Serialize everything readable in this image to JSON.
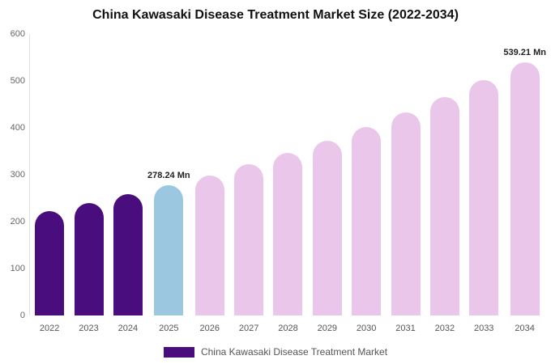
{
  "chart_data": {
    "type": "bar",
    "title": "China Kawasaki Disease Treatment Market Size (2022-2034)",
    "categories": [
      "2022",
      "2023",
      "2024",
      "2025",
      "2026",
      "2027",
      "2028",
      "2029",
      "2030",
      "2031",
      "2032",
      "2033",
      "2034"
    ],
    "values": [
      223,
      240,
      258,
      278.24,
      299,
      322,
      347,
      373,
      402,
      432,
      465,
      501,
      539.21
    ],
    "bar_roles": [
      "past",
      "past",
      "past",
      "current",
      "forecast",
      "forecast",
      "forecast",
      "forecast",
      "forecast",
      "forecast",
      "forecast",
      "forecast",
      "forecast"
    ],
    "colors": {
      "past": "#4a0d7e",
      "current": "#9cc7e0",
      "forecast": "#eac7ea"
    },
    "xlabel": "",
    "ylabel": "",
    "ylim": [
      0,
      600
    ],
    "ytick_step": 100,
    "grid": false,
    "data_labels": [
      {
        "category": "2025",
        "text": "278.24 Mn"
      },
      {
        "category": "2034",
        "text": "539.21 Mn"
      }
    ],
    "legend": {
      "position": "bottom",
      "label": "China Kawasaki Disease Treatment Market"
    }
  }
}
